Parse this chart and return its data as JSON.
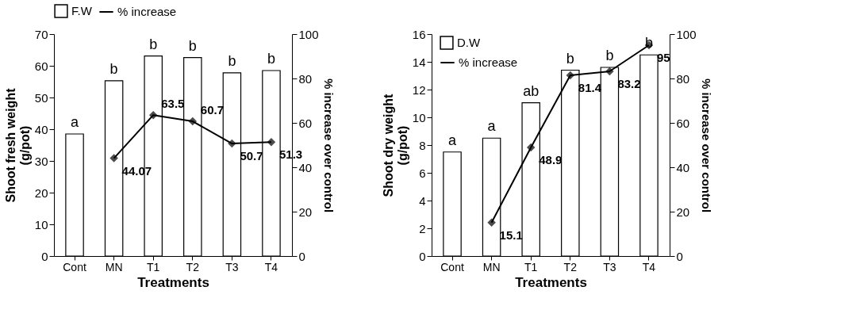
{
  "chart_data": [
    {
      "type": "bar",
      "categories": [
        "Cont",
        "MN",
        "T1",
        "T2",
        "T3",
        "T4"
      ],
      "xlabel": "Treatments",
      "ylabel": "Shoot fresh weight (g/pot)",
      "y2label": "% increase over control",
      "series": [
        {
          "name": "F.W",
          "color": "#ffffff",
          "values": [
            38.5,
            55.3,
            63.1,
            62.6,
            57.8,
            58.5
          ]
        },
        {
          "name": "% increase",
          "type": "line",
          "axis": "y2",
          "color": "#000000",
          "values": [
            null,
            44.07,
            63.5,
            60.7,
            50.7,
            51.3
          ],
          "value_labels": [
            null,
            "44.07",
            "63.5",
            "60.7",
            "50.7",
            "51.3"
          ]
        }
      ],
      "ylim": [
        0,
        70
      ],
      "yticks": [
        0,
        10,
        20,
        30,
        40,
        50,
        60,
        70
      ],
      "y2lim": [
        0,
        100
      ],
      "y2ticks": [
        0,
        20,
        40,
        60,
        80,
        100
      ],
      "annotations": [
        {
          "text": "a",
          "x": "Cont",
          "y": 38.5
        },
        {
          "text": "b",
          "x": "MN",
          "y": 55.3
        },
        {
          "text": "b",
          "x": "T1",
          "y": 63.1
        },
        {
          "text": "b",
          "x": "T2",
          "y": 62.6
        },
        {
          "text": "b",
          "x": "T3",
          "y": 57.8
        },
        {
          "text": "b",
          "x": "T4",
          "y": 58.5
        }
      ],
      "legend": "top",
      "marker": "diamond",
      "line_style": "solid",
      "grid": false
    },
    {
      "type": "bar",
      "categories": [
        "Cont",
        "MN",
        "T1",
        "T2",
        "T3",
        "T4"
      ],
      "xlabel": "Treatments",
      "ylabel": "Shoot dry weight (g/pot)",
      "y2label": "% increase over control",
      "series": [
        {
          "name": "D.W",
          "color": "#ffffff",
          "values": [
            7.5,
            8.5,
            11.05,
            13.4,
            13.6,
            14.5
          ]
        },
        {
          "name": "% increase",
          "type": "line",
          "axis": "y2",
          "color": "#000000",
          "values": [
            null,
            15.1,
            48.9,
            81.4,
            83.2,
            95
          ],
          "value_labels": [
            null,
            "15.1",
            "48.9",
            "81.4",
            "83.2",
            "95"
          ]
        }
      ],
      "ylim": [
        0,
        16
      ],
      "yticks": [
        0,
        2,
        4,
        6,
        8,
        10,
        12,
        14,
        16
      ],
      "y2lim": [
        0,
        100
      ],
      "y2ticks": [
        0,
        20,
        40,
        60,
        80,
        100
      ],
      "annotations": [
        {
          "text": "a",
          "x": "Cont",
          "y": 7.5
        },
        {
          "text": "a",
          "x": "MN",
          "y": 8.5
        },
        {
          "text": "ab",
          "x": "T1",
          "y": 11.05
        },
        {
          "text": "b",
          "x": "T2",
          "y": 13.4
        },
        {
          "text": "b",
          "x": "T3",
          "y": 13.6
        },
        {
          "text": "b",
          "x": "T4",
          "y": 14.5
        }
      ],
      "legend": "top left",
      "marker": "diamond",
      "line_style": "solid",
      "grid": false
    }
  ]
}
